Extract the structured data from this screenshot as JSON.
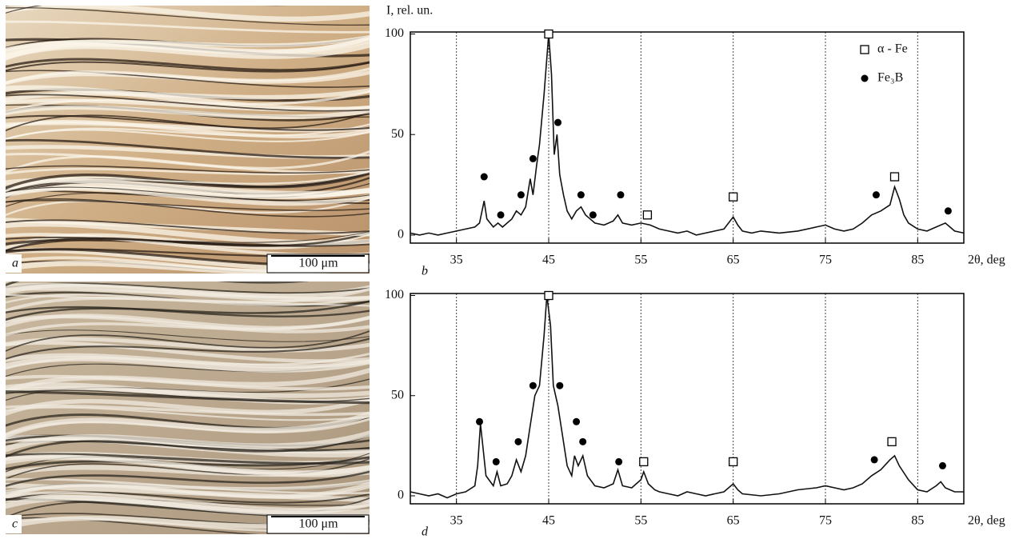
{
  "images": [
    {
      "label": "a",
      "scale_bar": "100 μm"
    },
    {
      "label": "c",
      "scale_bar": "100 μm"
    }
  ],
  "chart_data": [
    {
      "type": "line",
      "panel_label": "b",
      "y_label": "I, rel. un.",
      "x_label": "2θ, deg",
      "xlim": [
        30,
        90
      ],
      "ylim": [
        -4,
        101
      ],
      "xticks": [
        35,
        45,
        55,
        65,
        75,
        85
      ],
      "yticks": [
        0,
        50,
        100
      ],
      "grid": true,
      "color": "#111111",
      "x": [
        30,
        31,
        32,
        33,
        34,
        35,
        36,
        37,
        37.5,
        38,
        38.3,
        39,
        39.5,
        40,
        41,
        41.5,
        42,
        42.5,
        43,
        43.3,
        43.7,
        44,
        44.5,
        45,
        45.3,
        45.6,
        45.9,
        46.2,
        46.6,
        47,
        47.5,
        48,
        48.5,
        49,
        49.5,
        50,
        51,
        52,
        52.5,
        53,
        54,
        55,
        56,
        57,
        58,
        59,
        60,
        61,
        62,
        63,
        64,
        65,
        65.5,
        66,
        67,
        68,
        70,
        72,
        74,
        75,
        76,
        77,
        78,
        79,
        80,
        81,
        82,
        82.5,
        83,
        83.5,
        84,
        85,
        86,
        87,
        88,
        88.5,
        89,
        90
      ],
      "values": [
        1,
        0,
        1,
        0,
        1,
        2,
        3,
        4,
        6,
        17,
        8,
        4,
        6,
        4,
        8,
        12,
        10,
        14,
        28,
        20,
        35,
        45,
        70,
        100,
        80,
        40,
        50,
        30,
        20,
        12,
        8,
        12,
        14,
        10,
        8,
        6,
        5,
        7,
        10,
        6,
        5,
        6,
        5,
        3,
        2,
        1,
        2,
        0,
        1,
        2,
        3,
        9,
        5,
        2,
        1,
        2,
        1,
        2,
        4,
        5,
        3,
        2,
        3,
        6,
        10,
        12,
        15,
        24,
        18,
        10,
        6,
        3,
        2,
        4,
        6,
        4,
        2,
        1
      ],
      "legend": true,
      "markers": [
        {
          "name": "α - Fe",
          "shape": "square",
          "x": [
            45,
            55.7,
            65,
            82.5
          ],
          "values": [
            100,
            10,
            19,
            29
          ]
        },
        {
          "name": "Fe₃B",
          "shape": "circle",
          "x": [
            38,
            39.8,
            42,
            43.3,
            46,
            48.5,
            49.8,
            52.8,
            80.5,
            88.3
          ],
          "values": [
            29,
            10,
            20,
            38,
            56,
            20,
            10,
            20,
            20,
            12
          ]
        }
      ]
    },
    {
      "type": "line",
      "panel_label": "d",
      "x_label": "2θ, deg",
      "xlim": [
        30,
        90
      ],
      "ylim": [
        -4,
        101
      ],
      "xticks": [
        35,
        45,
        55,
        65,
        75,
        85
      ],
      "yticks": [
        0,
        50,
        100
      ],
      "grid": true,
      "color": "#111111",
      "x": [
        30,
        31,
        32,
        33,
        34,
        35,
        36,
        37,
        37.3,
        37.6,
        38.2,
        39,
        39.4,
        39.8,
        40.5,
        41,
        41.5,
        42,
        42.5,
        43,
        43.5,
        44,
        44.5,
        44.8,
        45.2,
        45.5,
        46,
        46.5,
        47,
        47.5,
        47.8,
        48.2,
        48.7,
        49.2,
        50,
        51,
        52,
        52.5,
        53,
        54,
        55,
        55.3,
        55.8,
        56.5,
        57,
        58,
        59,
        60,
        61,
        62,
        63,
        64,
        65,
        65.5,
        66,
        68,
        70,
        72,
        74,
        75,
        76,
        77,
        78,
        79,
        80,
        81,
        82,
        82.5,
        83,
        84,
        85,
        86,
        87,
        87.5,
        88,
        89,
        90
      ],
      "values": [
        2,
        1,
        0,
        1,
        -1,
        1,
        2,
        5,
        15,
        36,
        10,
        5,
        12,
        5,
        6,
        10,
        18,
        12,
        20,
        35,
        50,
        55,
        80,
        100,
        85,
        55,
        45,
        30,
        15,
        10,
        20,
        15,
        20,
        10,
        5,
        4,
        6,
        13,
        5,
        4,
        8,
        12,
        6,
        3,
        2,
        1,
        0,
        2,
        1,
        0,
        1,
        2,
        6,
        3,
        1,
        0,
        1,
        3,
        4,
        5,
        4,
        3,
        4,
        6,
        10,
        13,
        18,
        20,
        15,
        8,
        3,
        2,
        5,
        7,
        4,
        2,
        2
      ],
      "legend": false,
      "markers": [
        {
          "shape": "square",
          "x": [
            45,
            55.3,
            65,
            82.2
          ],
          "values": [
            100,
            17,
            17,
            27
          ]
        },
        {
          "shape": "circle",
          "x": [
            37.5,
            39.3,
            41.7,
            43.3,
            46.2,
            48,
            48.7,
            52.6,
            80.3,
            87.7
          ],
          "values": [
            37,
            17,
            27,
            55,
            55,
            37,
            27,
            17,
            18,
            15
          ]
        }
      ]
    }
  ]
}
